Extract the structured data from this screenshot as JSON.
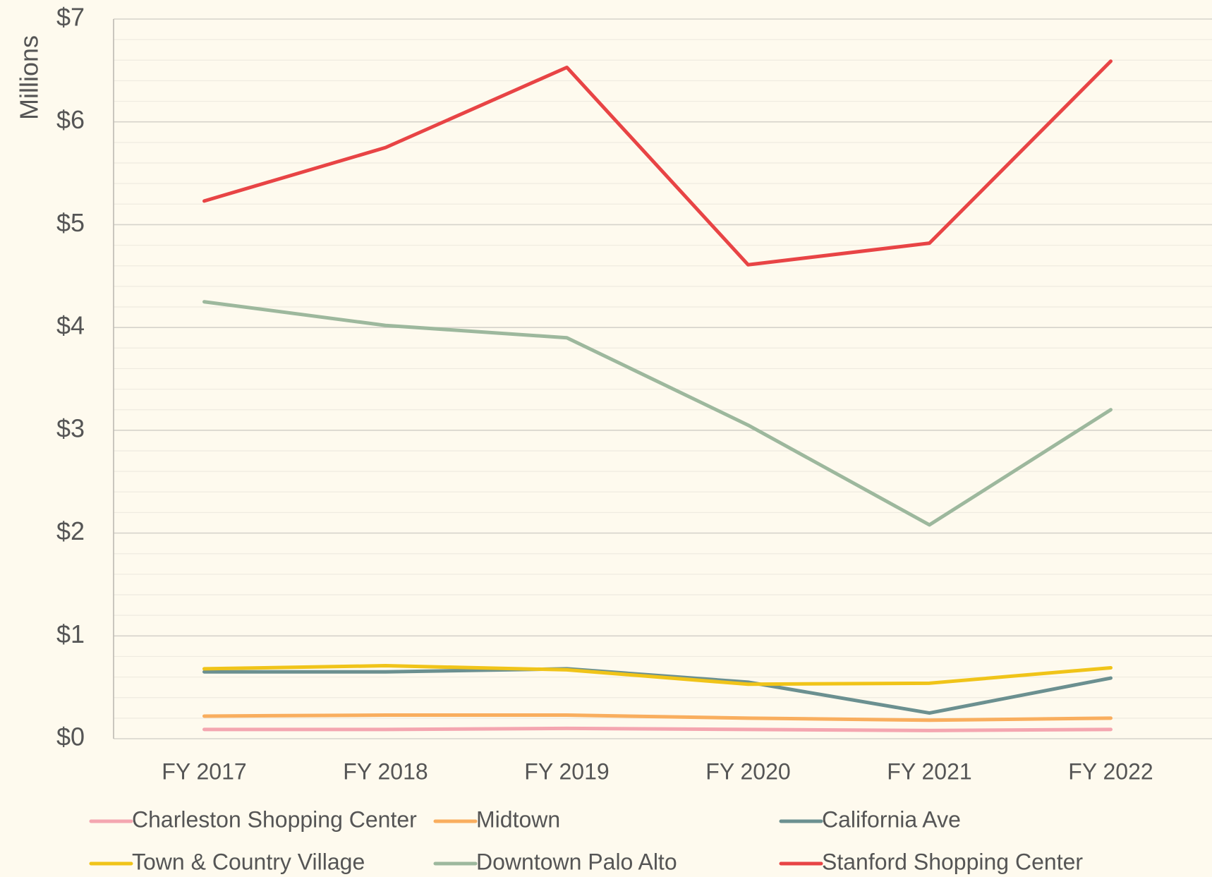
{
  "chart_data": {
    "type": "line",
    "y_axis_label": "Millions",
    "categories": [
      "FY 2017",
      "FY 2018",
      "FY 2019",
      "FY 2020",
      "FY 2021",
      "FY 2022"
    ],
    "series": [
      {
        "name": "Charleston Shopping Center",
        "color": "#f4a6b0",
        "values": [
          0.09,
          0.09,
          0.1,
          0.09,
          0.08,
          0.09
        ]
      },
      {
        "name": "Midtown",
        "color": "#f9ae5e",
        "values": [
          0.22,
          0.23,
          0.23,
          0.2,
          0.18,
          0.2
        ]
      },
      {
        "name": "California Ave",
        "color": "#6b9090",
        "values": [
          0.65,
          0.65,
          0.68,
          0.55,
          0.25,
          0.59
        ]
      },
      {
        "name": "Town & Country Village",
        "color": "#f0c419",
        "values": [
          0.68,
          0.71,
          0.67,
          0.53,
          0.54,
          0.69
        ]
      },
      {
        "name": "Downtown Palo Alto",
        "color": "#9db89d",
        "values": [
          4.25,
          4.02,
          3.9,
          3.05,
          2.08,
          3.2
        ]
      },
      {
        "name": "Stanford Shopping Center",
        "color": "#e84445",
        "values": [
          5.23,
          5.75,
          6.53,
          4.61,
          4.82,
          6.59
        ]
      }
    ],
    "ylim": [
      0,
      7
    ],
    "yticks": [
      {
        "value": 0,
        "label": "$0"
      },
      {
        "value": 1,
        "label": "$1"
      },
      {
        "value": 2,
        "label": "$2"
      },
      {
        "value": 3,
        "label": "$3"
      },
      {
        "value": 4,
        "label": "$4"
      },
      {
        "value": 5,
        "label": "$5"
      },
      {
        "value": 6,
        "label": "$6"
      },
      {
        "value": 7,
        "label": "$7"
      }
    ],
    "minor_yticks": [
      0.2,
      0.4,
      0.6,
      0.8,
      1.2,
      1.4,
      1.6,
      1.8,
      2.2,
      2.4,
      2.6,
      2.8,
      3.2,
      3.4,
      3.6,
      3.8,
      4.2,
      4.4,
      4.6,
      4.8,
      5.2,
      5.4,
      5.6,
      5.8,
      6.2,
      6.4,
      6.6,
      6.8
    ],
    "grid": true,
    "legend": "bottom"
  }
}
